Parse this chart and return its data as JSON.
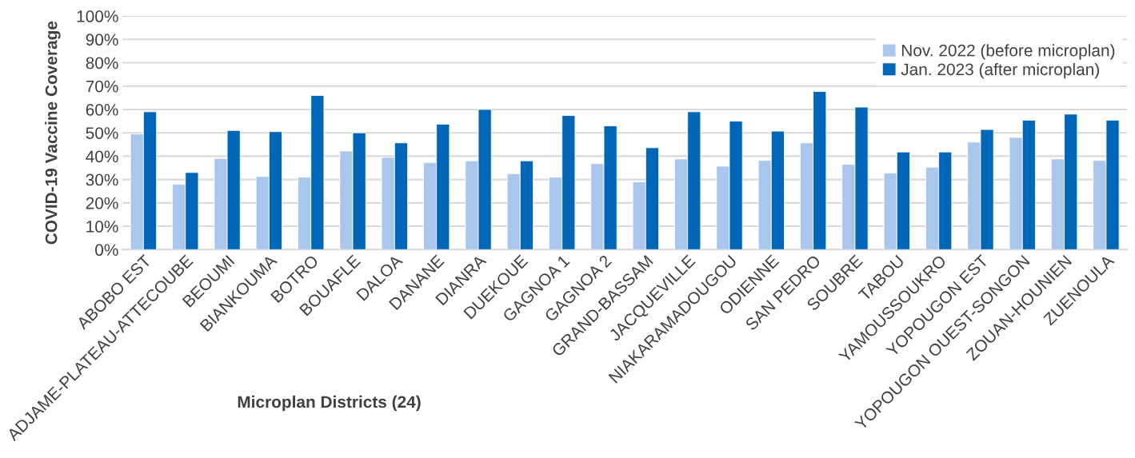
{
  "chart_data": {
    "type": "bar",
    "xlabel": "Microplan Districts (24)",
    "ylabel": "COVID-19 Vaccine Coverage",
    "categories": [
      "ABOBO EST",
      "ADJAME-PLATEAU-ATTECOUBE",
      "BEOUMI",
      "BIANKOUMA",
      "BOTRO",
      "BOUAFLE",
      "DALOA",
      "DANANE",
      "DIANRA",
      "DUEKOUE",
      "GAGNOA 1",
      "GAGNOA 2",
      "GRAND-BASSAM",
      "JACQUEVILLE",
      "NIAKARAMADOUGOU",
      "ODIENNE",
      "SAN PEDRO",
      "SOUBRE",
      "TABOU",
      "YAMOUSSOUKRO",
      "YOPOUGON EST",
      "YOPOUGON OUEST-SONGON",
      "ZOUAN-HOUNIEN",
      "ZUENOULA"
    ],
    "series": [
      {
        "name": "Nov. 2022 (before microplan)",
        "color": "#a9c6ec",
        "values": [
          49.5,
          28,
          39,
          31.3,
          31,
          42.2,
          39.5,
          37.3,
          38,
          32.5,
          31,
          36.8,
          29,
          38.8,
          35.7,
          38.2,
          45.7,
          36.5,
          32.8,
          35.3,
          46,
          48,
          38.8,
          38.2
        ]
      },
      {
        "name": "Jan. 2023 (after microplan)",
        "color": "#0066b8",
        "values": [
          59,
          33,
          51,
          50.5,
          66,
          50,
          45.7,
          53.7,
          60,
          38,
          57.4,
          53,
          43.6,
          59,
          55,
          50.7,
          67.7,
          61,
          41.8,
          41.8,
          51.4,
          55.4,
          58,
          55.4
        ]
      }
    ],
    "ylim": [
      0,
      100
    ],
    "yticks": [
      {
        "value": 0,
        "label": "0%"
      },
      {
        "value": 10,
        "label": "10%"
      },
      {
        "value": 20,
        "label": "20%"
      },
      {
        "value": 30,
        "label": "30%"
      },
      {
        "value": 40,
        "label": "40%"
      },
      {
        "value": 50,
        "label": "50%"
      },
      {
        "value": 60,
        "label": "60%"
      },
      {
        "value": 70,
        "label": "70%"
      },
      {
        "value": 80,
        "label": "80%"
      },
      {
        "value": 90,
        "label": "90%"
      },
      {
        "value": 100,
        "label": "100%"
      }
    ],
    "grid": "y",
    "legend": "top right"
  }
}
